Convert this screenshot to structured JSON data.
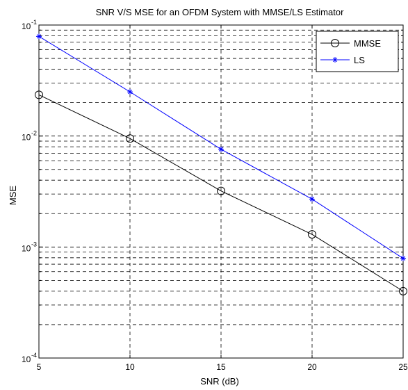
{
  "chart_data": {
    "type": "line",
    "title": "SNR V/S MSE for an OFDM System with MMSE/LS Estimator",
    "xlabel": "SNR (dB)",
    "ylabel": "MSE",
    "xlim": [
      5,
      25
    ],
    "ylim": [
      0.0001,
      0.1
    ],
    "yscale": "log",
    "grid": true,
    "legend_position": "top-right",
    "x_ticks": [
      5,
      10,
      15,
      20,
      25
    ],
    "y_ticks": [
      {
        "value": 0.1,
        "base": "10",
        "exp": "-1"
      },
      {
        "value": 0.01,
        "base": "10",
        "exp": "-2"
      },
      {
        "value": 0.001,
        "base": "10",
        "exp": "-3"
      },
      {
        "value": 0.0001,
        "base": "10",
        "exp": "-4"
      }
    ],
    "x": [
      5,
      10,
      15,
      20,
      25
    ],
    "series": [
      {
        "name": "MMSE",
        "color": "#000000",
        "marker": "circle",
        "values": [
          0.0235,
          0.0095,
          0.0032,
          0.0013,
          0.0004
        ]
      },
      {
        "name": "LS",
        "color": "#0000ff",
        "marker": "star",
        "values": [
          0.079,
          0.025,
          0.0076,
          0.0027,
          0.00079
        ]
      }
    ]
  }
}
